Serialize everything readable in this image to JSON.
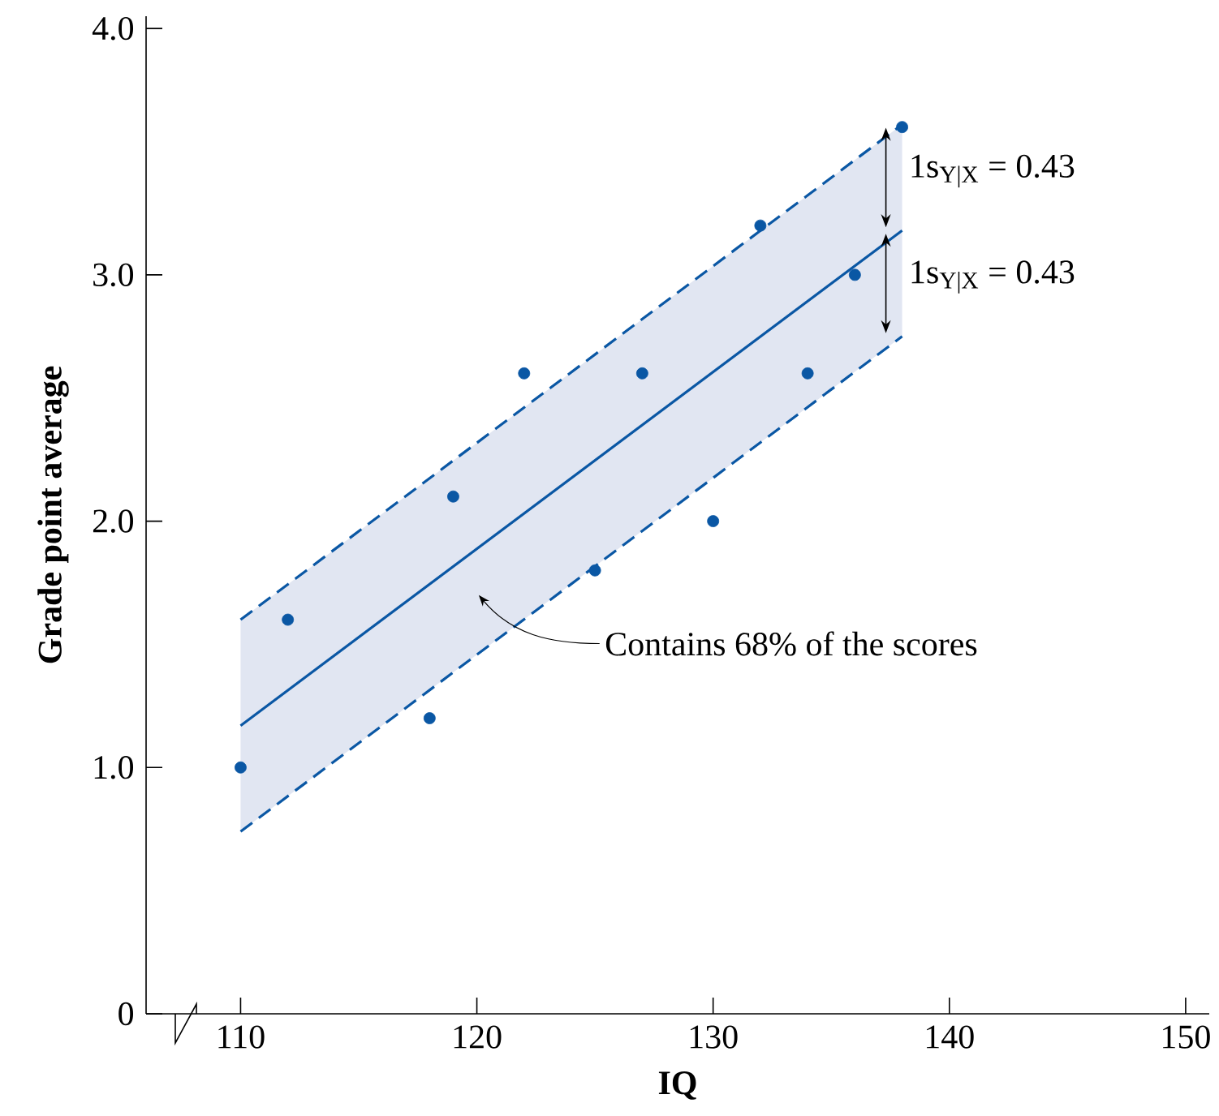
{
  "chart_data": {
    "type": "scatter",
    "xlabel": "IQ",
    "ylabel": "Grade point average",
    "xlim": [
      106,
      151
    ],
    "ylim": [
      0,
      4.05
    ],
    "xticks": [
      110,
      120,
      130,
      140,
      150
    ],
    "yticks": [
      0,
      {
        "value": 1,
        "label": "1.0"
      },
      {
        "value": 2,
        "label": "2.0"
      },
      {
        "value": 3,
        "label": "3.0"
      },
      {
        "value": 4,
        "label": "4.0"
      }
    ],
    "grid": false,
    "series": [
      {
        "color": "#0a57a4",
        "x": [
          110,
          112,
          118,
          119,
          122,
          125,
          127,
          130,
          132,
          134,
          136,
          138
        ],
        "values": [
          1.0,
          1.6,
          1.2,
          2.1,
          2.6,
          1.8,
          2.6,
          2.0,
          3.2,
          2.6,
          3.0,
          3.6
        ]
      },
      {
        "type": "line",
        "color": "#0a57a4",
        "line_style": "solid",
        "marker": "none",
        "x": [
          110,
          138
        ],
        "values": [
          1.17,
          3.18
        ],
        "lower": [
          0.74,
          2.75
        ],
        "upper": [
          1.6,
          3.61
        ]
      },
      {
        "type": "line",
        "color": "#0a57a4",
        "line_style": "dashed",
        "marker": "none",
        "x": [
          110,
          138
        ],
        "values": [
          1.6,
          3.61
        ]
      },
      {
        "type": "line",
        "color": "#0a57a4",
        "line_style": "dashed",
        "marker": "none",
        "x": [
          110,
          138
        ],
        "values": [
          0.74,
          2.75
        ]
      }
    ],
    "annotations": [
      "Contains 68% of the scores",
      "1s$_{Y|X}$ = 0.43",
      "1s$_{Y|X}$ = 0.43"
    ]
  }
}
